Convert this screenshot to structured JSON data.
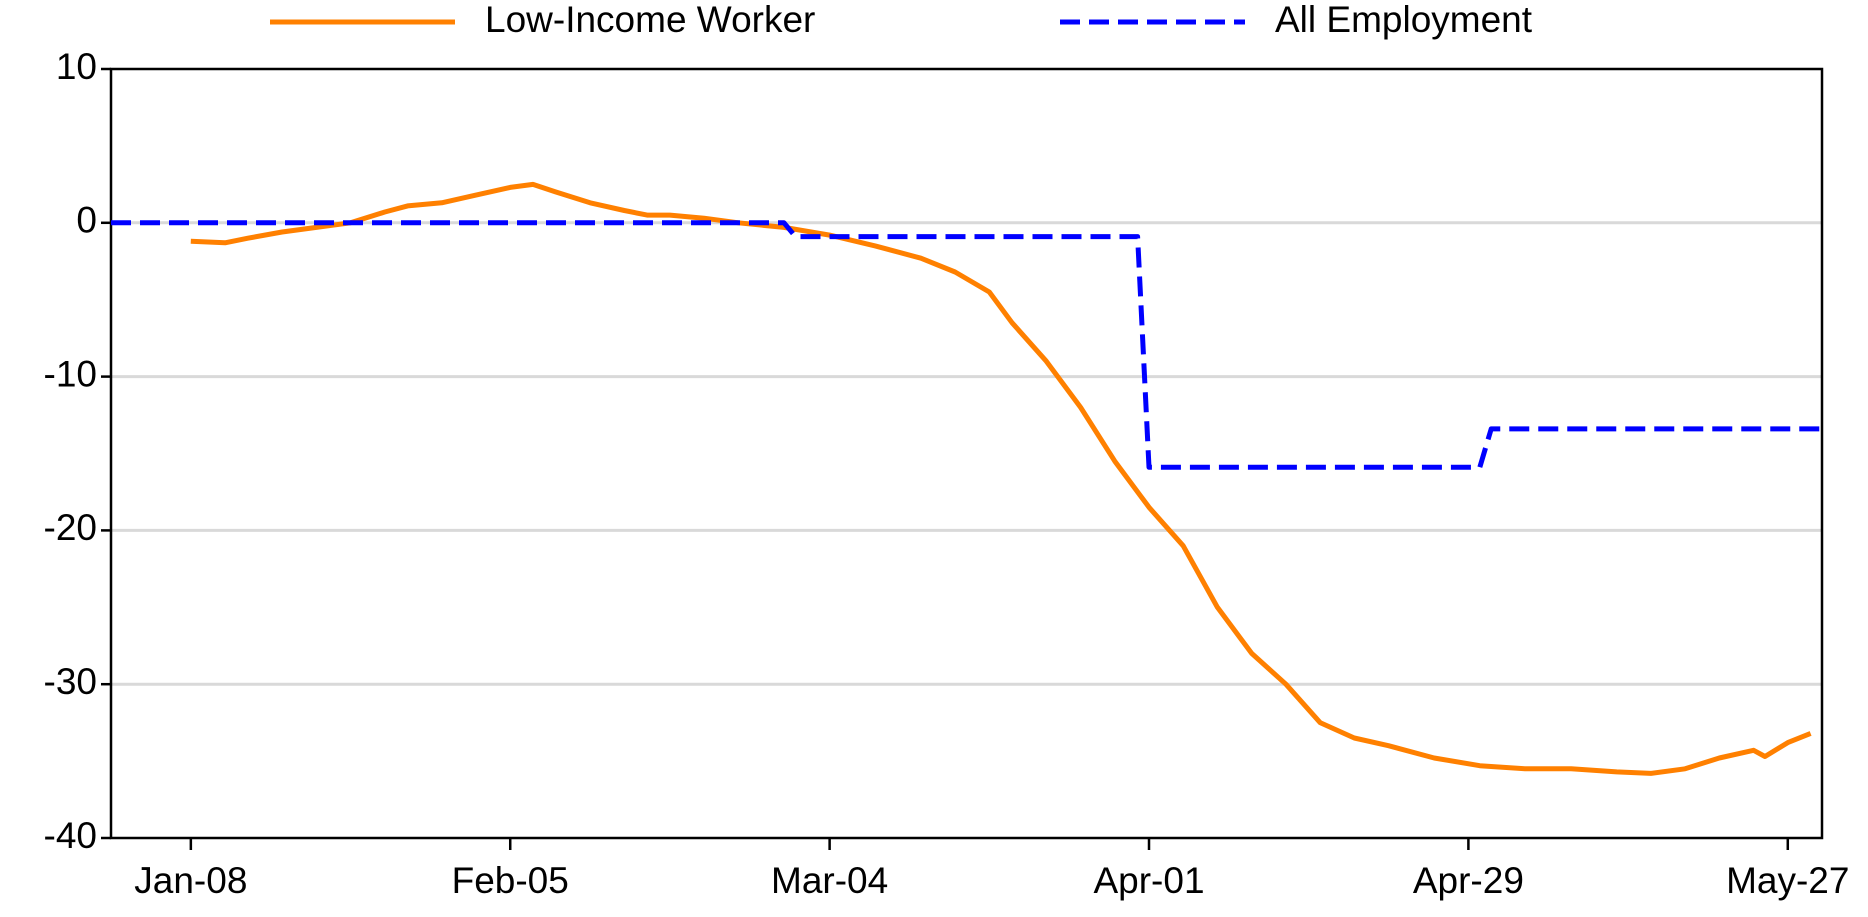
{
  "chart_data": {
    "type": "line",
    "xlim": [
      -7,
      143
    ],
    "xticks": [
      {
        "value": 0,
        "label": "Jan-08"
      },
      {
        "value": 28,
        "label": "Feb-05"
      },
      {
        "value": 56,
        "label": "Mar-04"
      },
      {
        "value": 84,
        "label": "Apr-01"
      },
      {
        "value": 112,
        "label": "Apr-29"
      },
      {
        "value": 140,
        "label": "May-27"
      }
    ],
    "ylim": [
      -40,
      10
    ],
    "yticks": [
      10,
      0,
      -10,
      -20,
      -30,
      -40
    ],
    "grid": true,
    "legend": "top",
    "series": [
      {
        "name": "Low-Income Worker",
        "color": "#ff8000",
        "dash": false,
        "x": [
          0,
          3,
          5,
          8,
          11,
          14,
          17,
          19,
          22,
          25,
          28,
          30,
          32,
          35,
          38,
          40,
          42,
          45,
          48,
          52,
          56,
          60,
          64,
          67,
          70,
          72,
          75,
          78,
          81,
          84,
          87,
          90,
          93,
          96,
          99,
          102,
          105,
          109,
          113,
          117,
          121,
          125,
          128,
          131,
          134,
          137,
          138,
          140,
          142
        ],
        "values": [
          -1.2,
          -1.3,
          -1.0,
          -0.6,
          -0.3,
          0,
          0.7,
          1.1,
          1.3,
          1.8,
          2.3,
          2.5,
          2.0,
          1.3,
          0.8,
          0.5,
          0.5,
          0.3,
          0,
          -0.3,
          -0.8,
          -1.5,
          -2.3,
          -3.2,
          -4.5,
          -6.5,
          -9,
          -12,
          -15.5,
          -18.5,
          -21,
          -25,
          -28,
          -30,
          -32.5,
          -33.5,
          -34,
          -34.8,
          -35.3,
          -35.5,
          -35.5,
          -35.7,
          -35.8,
          -35.5,
          -34.8,
          -34.3,
          -34.7,
          -33.8,
          -33.2
        ]
      },
      {
        "name": "All Employment",
        "color": "#0000ff",
        "dash": true,
        "x": [
          -7,
          52,
          53,
          83,
          84,
          113,
          114,
          143
        ],
        "values": [
          0,
          0,
          -0.9,
          -0.9,
          -15.9,
          -15.9,
          -13.4,
          -13.4
        ]
      }
    ]
  }
}
